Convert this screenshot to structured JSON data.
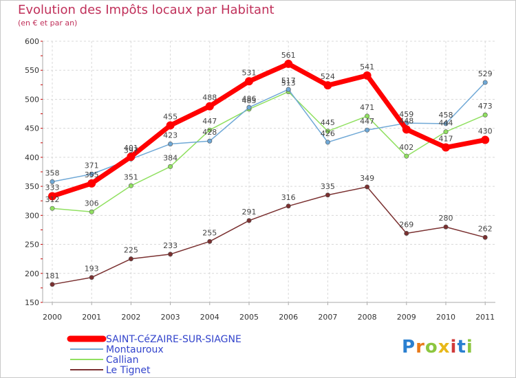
{
  "header": {
    "title": "Evolution des Impôts locaux par Habitant",
    "subtitle": "(en € et par an)"
  },
  "logo": {
    "text": "Proxiti"
  },
  "colors": {
    "saint_cezaire": "#ff0000",
    "montauroux": "#6fa8d6",
    "callian": "#90e060",
    "le_tignet": "#7a3030",
    "grid": "#d8d8d8",
    "axis_text": "#333333",
    "title": "#c0305a",
    "legend_text": "#3344cc"
  },
  "chart_data": {
    "type": "line",
    "title": "Evolution des Impôts locaux par Habitant",
    "subtitle": "(en € et par an)",
    "xlabel": "",
    "ylabel": "",
    "categories": [
      "2000",
      "2001",
      "2002",
      "2003",
      "2004",
      "2005",
      "2006",
      "2007",
      "2008",
      "2009",
      "2010",
      "2011"
    ],
    "ylim": [
      150,
      600
    ],
    "yticks": [
      150,
      200,
      250,
      300,
      350,
      400,
      450,
      500,
      550,
      600
    ],
    "grid": true,
    "legend_position": "bottom-left",
    "series": [
      {
        "name": "SAINT-CéZAIRE-SUR-SIAGNE",
        "key": "saint_cezaire",
        "values": [
          333,
          355,
          401,
          455,
          488,
          531,
          561,
          524,
          541,
          448,
          417,
          430
        ]
      },
      {
        "name": "Montauroux",
        "key": "montauroux",
        "values": [
          358,
          371,
          397,
          423,
          428,
          486,
          517,
          426,
          447,
          459,
          458,
          529
        ]
      },
      {
        "name": "Callian",
        "key": "callian",
        "values": [
          312,
          306,
          351,
          384,
          447,
          483,
          513,
          445,
          471,
          402,
          444,
          473
        ]
      },
      {
        "name": "Le Tignet",
        "key": "le_tignet",
        "values": [
          181,
          193,
          225,
          233,
          255,
          291,
          316,
          335,
          349,
          269,
          280,
          262
        ]
      }
    ]
  }
}
